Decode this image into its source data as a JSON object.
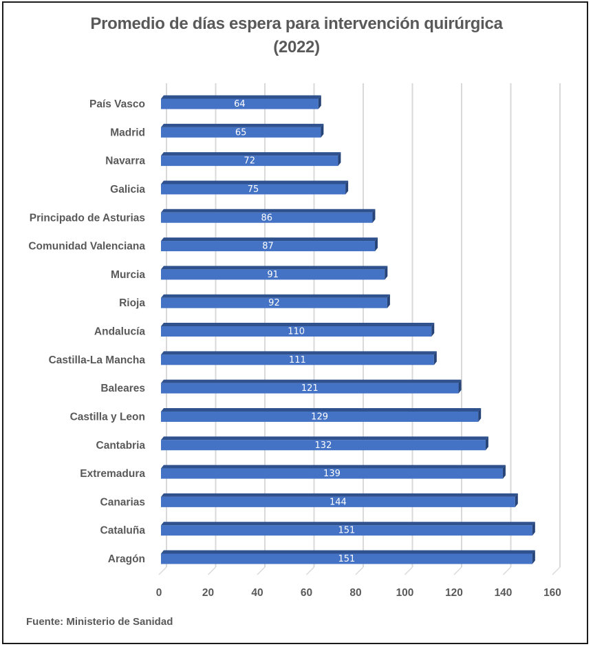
{
  "chart_data": {
    "type": "bar",
    "orientation": "horizontal",
    "style": "3d-clustered",
    "title": "Promedio de días espera para intervención quirúrgica",
    "title_line2": "(2022)",
    "xlabel": "",
    "ylabel": "",
    "xlim": [
      0,
      160
    ],
    "xticks": [
      "0",
      "20",
      "40",
      "60",
      "80",
      "100",
      "120",
      "140",
      "160"
    ],
    "grid": true,
    "legend": "none",
    "categories": [
      "País Vasco",
      "Madrid",
      "Navarra",
      "Galicia",
      "Principado de Asturias",
      "Comunidad Valenciana",
      "Murcia",
      "Rioja",
      "Andalucía",
      "Castilla-La Mancha",
      "Baleares",
      "Castilla y Leon",
      "Cantabria",
      "Extremadura",
      "Canarias",
      "Cataluña",
      "Aragón"
    ],
    "values": [
      64,
      65,
      72,
      75,
      86,
      87,
      91,
      92,
      110,
      111,
      121,
      129,
      132,
      139,
      144,
      151,
      151
    ],
    "colors": {
      "bar_front": "#4472C4",
      "bar_top": "#2F528F",
      "bar_side": "#264478",
      "grid": "#D9D9D9",
      "text": "#595959"
    },
    "source": "Fuente: Ministerio de Sanidad"
  }
}
